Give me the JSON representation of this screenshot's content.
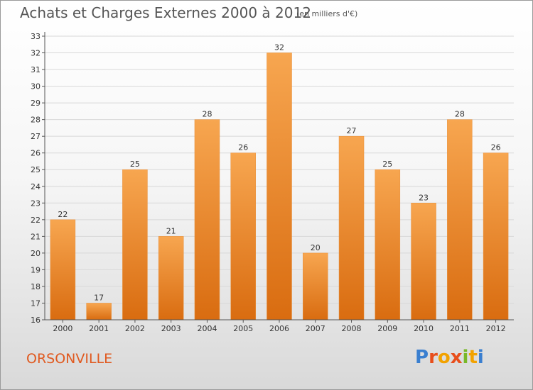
{
  "header": {
    "title": "Achats et Charges Externes 2000 à 2012",
    "subtitle": "(en milliers d'€)"
  },
  "footer": {
    "commune": "ORSONVILLE",
    "logo_text": "Proxiti",
    "logo_colors": [
      "#3a7fd0",
      "#e84e1b",
      "#f2a200",
      "#e84e1b",
      "#79b828",
      "#f2a200",
      "#3a7fd0"
    ]
  },
  "colors": {
    "bar_top": "#f7a650",
    "bar_bottom": "#d96c10",
    "grid": "#d8d8d8"
  },
  "chart_data": {
    "type": "bar",
    "title": "Achats et Charges Externes 2000 à 2012",
    "subtitle": "(en milliers d'€)",
    "xlabel": "",
    "ylabel": "",
    "categories": [
      "2000",
      "2001",
      "2002",
      "2003",
      "2004",
      "2005",
      "2006",
      "2007",
      "2008",
      "2009",
      "2010",
      "2011",
      "2012"
    ],
    "values": [
      22,
      17,
      25,
      21,
      28,
      26,
      32,
      20,
      27,
      25,
      23,
      28,
      26
    ],
    "ylim": [
      16,
      33
    ],
    "yticks": [
      16,
      17,
      18,
      19,
      20,
      21,
      22,
      23,
      24,
      25,
      26,
      27,
      28,
      29,
      30,
      31,
      32,
      33
    ],
    "grid": true,
    "legend": "none"
  }
}
